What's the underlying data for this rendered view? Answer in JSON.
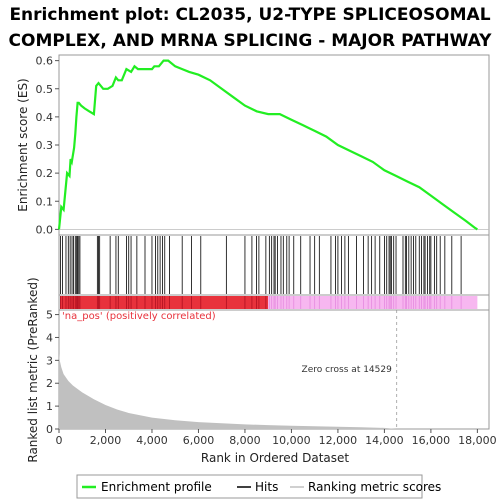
{
  "title_line1": "Enrichment plot: CL2035, U2-TYPE SPLICEOSOMAL",
  "title_line2": "COMPLEX, AND MRNA SPLICING - MAJOR PATHWAY",
  "colors": {
    "enrichment_line": "#22ee22",
    "hit_line": "#000000",
    "metric_fill": "#c0c0c0",
    "positive_band": "#e8323c",
    "negative_band": "#f7b7f0",
    "zero_cross": "#999999",
    "pos_label": "#e8323c"
  },
  "chart_data": [
    {
      "type": "line",
      "name": "enrichment-profile",
      "ylabel": "Enrichment score (ES)",
      "xlim": [
        0,
        18500
      ],
      "ylim": [
        -0.02,
        0.62
      ],
      "y_ticks": [
        "0.0",
        "0.1",
        "0.2",
        "0.3",
        "0.4",
        "0.5",
        "0.6"
      ],
      "y_tick_values": [
        0.0,
        0.1,
        0.2,
        0.3,
        0.4,
        0.5,
        0.6
      ],
      "series": [
        {
          "name": "Enrichment profile",
          "x": [
            0,
            100,
            200,
            350,
            450,
            500,
            550,
            650,
            700,
            750,
            800,
            850,
            950,
            1100,
            1300,
            1500,
            1600,
            1700,
            1900,
            2100,
            2300,
            2450,
            2550,
            2700,
            2900,
            3100,
            3250,
            3400,
            3600,
            3800,
            4000,
            4100,
            4300,
            4500,
            4700,
            5000,
            5300,
            5600,
            6000,
            6500,
            7000,
            7500,
            8000,
            8500,
            9000,
            9500,
            10000,
            10500,
            11000,
            11500,
            12000,
            12500,
            13000,
            13500,
            14000,
            14500,
            15000,
            15500,
            16000,
            16500,
            17000,
            17500,
            17900,
            18000
          ],
          "y": [
            0.0,
            0.08,
            0.07,
            0.2,
            0.19,
            0.25,
            0.24,
            0.29,
            0.34,
            0.4,
            0.45,
            0.45,
            0.44,
            0.43,
            0.42,
            0.41,
            0.51,
            0.52,
            0.5,
            0.5,
            0.51,
            0.54,
            0.53,
            0.53,
            0.57,
            0.56,
            0.58,
            0.57,
            0.57,
            0.57,
            0.57,
            0.58,
            0.58,
            0.6,
            0.6,
            0.58,
            0.57,
            0.56,
            0.55,
            0.53,
            0.5,
            0.47,
            0.44,
            0.42,
            0.41,
            0.41,
            0.39,
            0.37,
            0.35,
            0.33,
            0.3,
            0.28,
            0.26,
            0.24,
            0.21,
            0.19,
            0.17,
            0.15,
            0.12,
            0.09,
            0.06,
            0.03,
            0.005,
            0.0
          ]
        }
      ]
    },
    {
      "type": "scatter",
      "name": "hits",
      "hit_ranks": [
        60,
        150,
        300,
        400,
        480,
        560,
        620,
        700,
        760,
        800,
        850,
        900,
        1650,
        1700,
        1750,
        2200,
        2450,
        2550,
        2900,
        3000,
        3100,
        3350,
        3700,
        4000,
        4150,
        4250,
        4350,
        4450,
        4550,
        4750,
        5300,
        5700,
        6100,
        7200,
        8000,
        8300,
        8500,
        8600,
        8900,
        9050,
        9150,
        9250,
        9300,
        9400,
        9550,
        9650,
        9800,
        9900,
        10100,
        10400,
        10800,
        11000,
        11200,
        11700,
        11900,
        12000,
        12150,
        12300,
        12450,
        12800,
        13100,
        13300,
        13450,
        13600,
        13800,
        14000,
        14100,
        14200,
        14250,
        14300,
        14400,
        14500,
        14800,
        14900,
        14950,
        15050,
        15150,
        15250,
        15350,
        15500,
        15600,
        15700,
        15750,
        15850,
        15950,
        16000,
        16150,
        16250,
        16400,
        16600,
        16900,
        17300
      ]
    },
    {
      "type": "area",
      "name": "ranked-list-metric",
      "xlabel": "Rank in Ordered Dataset",
      "ylabel": "Ranked list metric (PreRanked)",
      "xlim": [
        0,
        18500
      ],
      "ylim": [
        0,
        5.2
      ],
      "x_ticks": [
        "0",
        "2,000",
        "4,000",
        "6,000",
        "8,000",
        "10,000",
        "12,000",
        "14,000",
        "16,000",
        "18,000"
      ],
      "x_tick_values": [
        0,
        2000,
        4000,
        6000,
        8000,
        10000,
        12000,
        14000,
        16000,
        18000
      ],
      "y_ticks": [
        "0",
        "1",
        "2",
        "3",
        "4",
        "5"
      ],
      "y_tick_values": [
        0,
        1,
        2,
        3,
        4,
        5
      ],
      "x": [
        0,
        30,
        100,
        200,
        400,
        600,
        800,
        1000,
        1500,
        2000,
        2500,
        3000,
        4000,
        5000,
        6000,
        7000,
        8000,
        9000,
        10000,
        11000,
        12000,
        13000,
        14000,
        14529,
        14600,
        18000
      ],
      "y": [
        3.3,
        3.0,
        2.7,
        2.4,
        2.1,
        1.9,
        1.75,
        1.6,
        1.3,
        1.05,
        0.85,
        0.7,
        0.5,
        0.38,
        0.3,
        0.25,
        0.2,
        0.17,
        0.14,
        0.12,
        0.1,
        0.08,
        0.05,
        0.0,
        0.0,
        0.0
      ],
      "zero_cross_rank": 14529,
      "zero_cross_label": "Zero cross at 14529",
      "positive_label": "'na_pos' (positively correlated)",
      "band_split_rank": 9000
    }
  ],
  "legend": {
    "enrichment_profile": "Enrichment profile",
    "hits": "Hits",
    "ranking_metric_scores": "Ranking metric scores"
  }
}
